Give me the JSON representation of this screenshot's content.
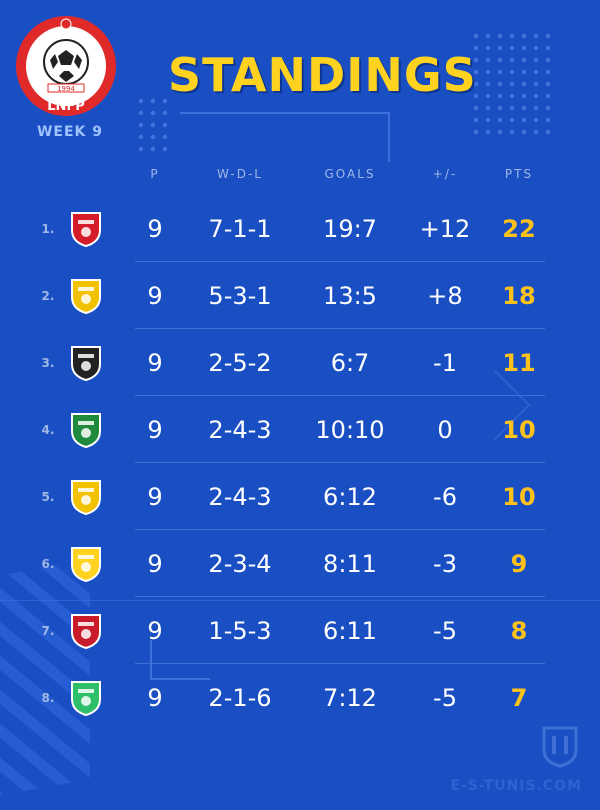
{
  "header": {
    "title": "STANDINGS",
    "league_label": "WEEK 9",
    "logo_text": "LNFP",
    "logo_year": "1994"
  },
  "columns": {
    "p": "P",
    "wdl": "W-D-L",
    "goals": "GOALS",
    "diff": "+/-",
    "pts": "PTS"
  },
  "rows": [
    {
      "rank": "1.",
      "badge_color": "#d51c2a",
      "p": "9",
      "wdl": "7-1-1",
      "goals": "19:7",
      "diff": "+12",
      "pts": "22"
    },
    {
      "rank": "2.",
      "badge_color": "#f2c200",
      "p": "9",
      "wdl": "5-3-1",
      "goals": "13:5",
      "diff": "+8",
      "pts": "18"
    },
    {
      "rank": "3.",
      "badge_color": "#222222",
      "p": "9",
      "wdl": "2-5-2",
      "goals": "6:7",
      "diff": "-1",
      "pts": "11"
    },
    {
      "rank": "4.",
      "badge_color": "#1f8a3b",
      "p": "9",
      "wdl": "2-4-3",
      "goals": "10:10",
      "diff": "0",
      "pts": "10"
    },
    {
      "rank": "5.",
      "badge_color": "#f2c200",
      "p": "9",
      "wdl": "2-4-3",
      "goals": "6:12",
      "diff": "-6",
      "pts": "10"
    },
    {
      "rank": "6.",
      "badge_color": "#ffd21f",
      "p": "9",
      "wdl": "2-3-4",
      "goals": "8:11",
      "diff": "-3",
      "pts": "9"
    },
    {
      "rank": "7.",
      "badge_color": "#c81c2a",
      "p": "9",
      "wdl": "1-5-3",
      "goals": "6:11",
      "diff": "-5",
      "pts": "8"
    },
    {
      "rank": "8.",
      "badge_color": "#2fbf6a",
      "p": "9",
      "wdl": "2-1-6",
      "goals": "7:12",
      "diff": "-5",
      "pts": "7"
    }
  ],
  "watermark": "E-S-TUNIS.COM",
  "colors": {
    "background": "#1a4fc4",
    "title": "#ffd21f",
    "points": "#ffc21a"
  }
}
